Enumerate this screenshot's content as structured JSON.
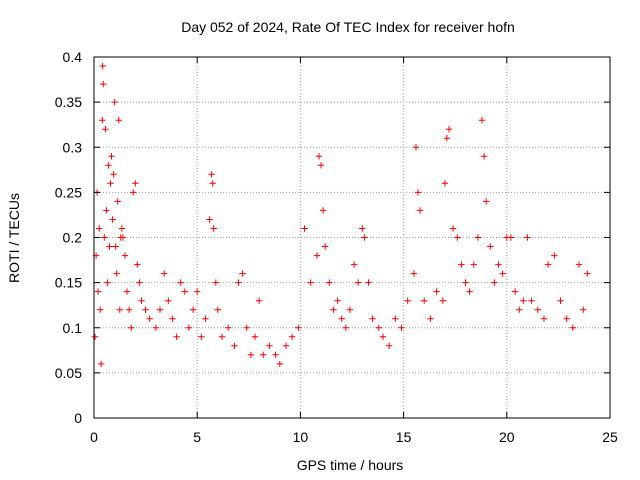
{
  "chart_data": {
    "type": "scatter",
    "title": "Day 052 of 2024, Rate Of TEC Index for receiver hofn",
    "xlabel": "GPS time / hours",
    "ylabel": "ROTI / TECUs",
    "xlim": [
      0,
      25
    ],
    "ylim": [
      0,
      0.4
    ],
    "xticks": [
      0,
      5,
      10,
      15,
      20,
      25
    ],
    "xtick_labels": [
      "0",
      "5",
      "10",
      "15",
      "20",
      "25"
    ],
    "yticks": [
      0,
      0.05,
      0.1,
      0.15,
      0.2,
      0.25,
      0.3,
      0.35,
      0.4
    ],
    "ytick_labels": [
      "0",
      "0.05",
      "0.1",
      "0.15",
      "0.2",
      "0.25",
      "0.3",
      "0.35",
      "0.4"
    ],
    "grid": true,
    "marker": "+",
    "series": [
      {
        "name": "ROTI",
        "color": "#ff0000",
        "points": [
          [
            0.05,
            0.09
          ],
          [
            0.1,
            0.18
          ],
          [
            0.15,
            0.25
          ],
          [
            0.2,
            0.14
          ],
          [
            0.25,
            0.21
          ],
          [
            0.3,
            0.12
          ],
          [
            0.35,
            0.06
          ],
          [
            0.4,
            0.33
          ],
          [
            0.42,
            0.39
          ],
          [
            0.45,
            0.37
          ],
          [
            0.5,
            0.2
          ],
          [
            0.55,
            0.32
          ],
          [
            0.6,
            0.23
          ],
          [
            0.65,
            0.15
          ],
          [
            0.7,
            0.28
          ],
          [
            0.75,
            0.19
          ],
          [
            0.8,
            0.26
          ],
          [
            0.85,
            0.29
          ],
          [
            0.9,
            0.22
          ],
          [
            0.95,
            0.27
          ],
          [
            1.0,
            0.35
          ],
          [
            1.05,
            0.19
          ],
          [
            1.1,
            0.16
          ],
          [
            1.15,
            0.24
          ],
          [
            1.2,
            0.33
          ],
          [
            1.25,
            0.12
          ],
          [
            1.3,
            0.2
          ],
          [
            1.35,
            0.21
          ],
          [
            1.4,
            0.2
          ],
          [
            1.5,
            0.18
          ],
          [
            1.6,
            0.14
          ],
          [
            1.7,
            0.12
          ],
          [
            1.8,
            0.1
          ],
          [
            1.9,
            0.25
          ],
          [
            2.0,
            0.26
          ],
          [
            2.1,
            0.17
          ],
          [
            2.2,
            0.15
          ],
          [
            2.3,
            0.13
          ],
          [
            2.5,
            0.12
          ],
          [
            2.7,
            0.11
          ],
          [
            3.0,
            0.1
          ],
          [
            3.2,
            0.12
          ],
          [
            3.4,
            0.16
          ],
          [
            3.6,
            0.13
          ],
          [
            3.8,
            0.11
          ],
          [
            4.0,
            0.09
          ],
          [
            4.2,
            0.15
          ],
          [
            4.4,
            0.14
          ],
          [
            4.6,
            0.1
          ],
          [
            4.8,
            0.12
          ],
          [
            5.0,
            0.14
          ],
          [
            5.2,
            0.09
          ],
          [
            5.4,
            0.11
          ],
          [
            5.6,
            0.22
          ],
          [
            5.7,
            0.27
          ],
          [
            5.75,
            0.26
          ],
          [
            5.8,
            0.21
          ],
          [
            5.9,
            0.15
          ],
          [
            6.0,
            0.12
          ],
          [
            6.2,
            0.09
          ],
          [
            6.5,
            0.1
          ],
          [
            6.8,
            0.08
          ],
          [
            7.0,
            0.15
          ],
          [
            7.2,
            0.16
          ],
          [
            7.4,
            0.1
          ],
          [
            7.6,
            0.07
          ],
          [
            7.8,
            0.09
          ],
          [
            8.0,
            0.13
          ],
          [
            8.2,
            0.07
          ],
          [
            8.5,
            0.08
          ],
          [
            8.8,
            0.07
          ],
          [
            9.0,
            0.06
          ],
          [
            9.3,
            0.08
          ],
          [
            9.6,
            0.09
          ],
          [
            9.9,
            0.1
          ],
          [
            10.2,
            0.21
          ],
          [
            10.5,
            0.15
          ],
          [
            10.8,
            0.18
          ],
          [
            10.9,
            0.29
          ],
          [
            11.0,
            0.28
          ],
          [
            11.1,
            0.23
          ],
          [
            11.2,
            0.19
          ],
          [
            11.4,
            0.15
          ],
          [
            11.6,
            0.12
          ],
          [
            11.8,
            0.13
          ],
          [
            12.0,
            0.11
          ],
          [
            12.2,
            0.1
          ],
          [
            12.4,
            0.12
          ],
          [
            12.6,
            0.17
          ],
          [
            12.8,
            0.15
          ],
          [
            13.0,
            0.21
          ],
          [
            13.1,
            0.2
          ],
          [
            13.3,
            0.15
          ],
          [
            13.5,
            0.11
          ],
          [
            13.8,
            0.1
          ],
          [
            14.0,
            0.09
          ],
          [
            14.3,
            0.08
          ],
          [
            14.6,
            0.11
          ],
          [
            14.9,
            0.1
          ],
          [
            15.2,
            0.13
          ],
          [
            15.5,
            0.16
          ],
          [
            15.6,
            0.3
          ],
          [
            15.7,
            0.25
          ],
          [
            15.8,
            0.23
          ],
          [
            16.0,
            0.13
          ],
          [
            16.3,
            0.11
          ],
          [
            16.6,
            0.14
          ],
          [
            16.9,
            0.13
          ],
          [
            17.0,
            0.26
          ],
          [
            17.1,
            0.31
          ],
          [
            17.2,
            0.32
          ],
          [
            17.4,
            0.21
          ],
          [
            17.6,
            0.2
          ],
          [
            17.8,
            0.17
          ],
          [
            18.0,
            0.15
          ],
          [
            18.2,
            0.14
          ],
          [
            18.4,
            0.17
          ],
          [
            18.6,
            0.2
          ],
          [
            18.8,
            0.33
          ],
          [
            18.9,
            0.29
          ],
          [
            19.0,
            0.24
          ],
          [
            19.2,
            0.19
          ],
          [
            19.4,
            0.15
          ],
          [
            19.6,
            0.17
          ],
          [
            19.8,
            0.16
          ],
          [
            20.0,
            0.2
          ],
          [
            20.2,
            0.2
          ],
          [
            20.4,
            0.14
          ],
          [
            20.6,
            0.12
          ],
          [
            20.8,
            0.13
          ],
          [
            21.0,
            0.2
          ],
          [
            21.2,
            0.13
          ],
          [
            21.5,
            0.12
          ],
          [
            21.8,
            0.11
          ],
          [
            22.0,
            0.17
          ],
          [
            22.3,
            0.18
          ],
          [
            22.6,
            0.13
          ],
          [
            22.9,
            0.11
          ],
          [
            23.2,
            0.1
          ],
          [
            23.5,
            0.17
          ],
          [
            23.7,
            0.12
          ],
          [
            23.9,
            0.16
          ]
        ]
      }
    ]
  }
}
